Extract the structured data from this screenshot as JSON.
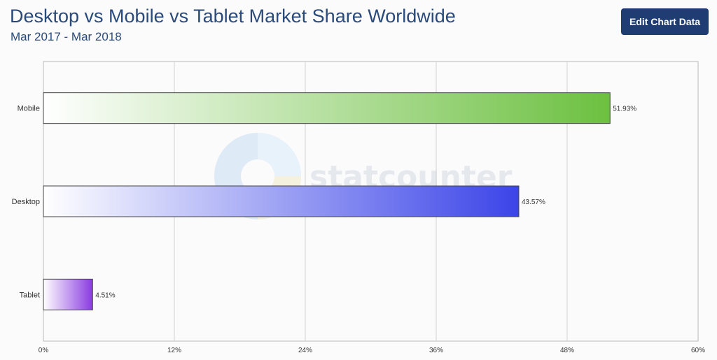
{
  "header": {
    "title": "Desktop vs Mobile vs Tablet Market Share Worldwide",
    "subtitle": "Mar 2017 - Mar 2018",
    "edit_button_label": "Edit Chart Data"
  },
  "watermark": {
    "text": "statcounter"
  },
  "colors": {
    "mobile": "#6cc040",
    "desktop": "#3b44e8",
    "tablet": "#8a3be0",
    "axis": "#999999",
    "grid": "#d0d0d0",
    "button": "#1f3d73"
  },
  "chart_data": {
    "type": "bar",
    "orientation": "horizontal",
    "categories": [
      "Mobile",
      "Desktop",
      "Tablet"
    ],
    "values": [
      51.93,
      43.57,
      4.51
    ],
    "value_labels": [
      "51.93%",
      "43.57%",
      "4.51%"
    ],
    "xlim": [
      0,
      60
    ],
    "x_ticks": [
      0,
      12,
      24,
      36,
      48,
      60
    ],
    "x_tick_labels": [
      "0%",
      "12%",
      "24%",
      "36%",
      "48%",
      "60%"
    ],
    "grid": true,
    "legend": "none"
  }
}
